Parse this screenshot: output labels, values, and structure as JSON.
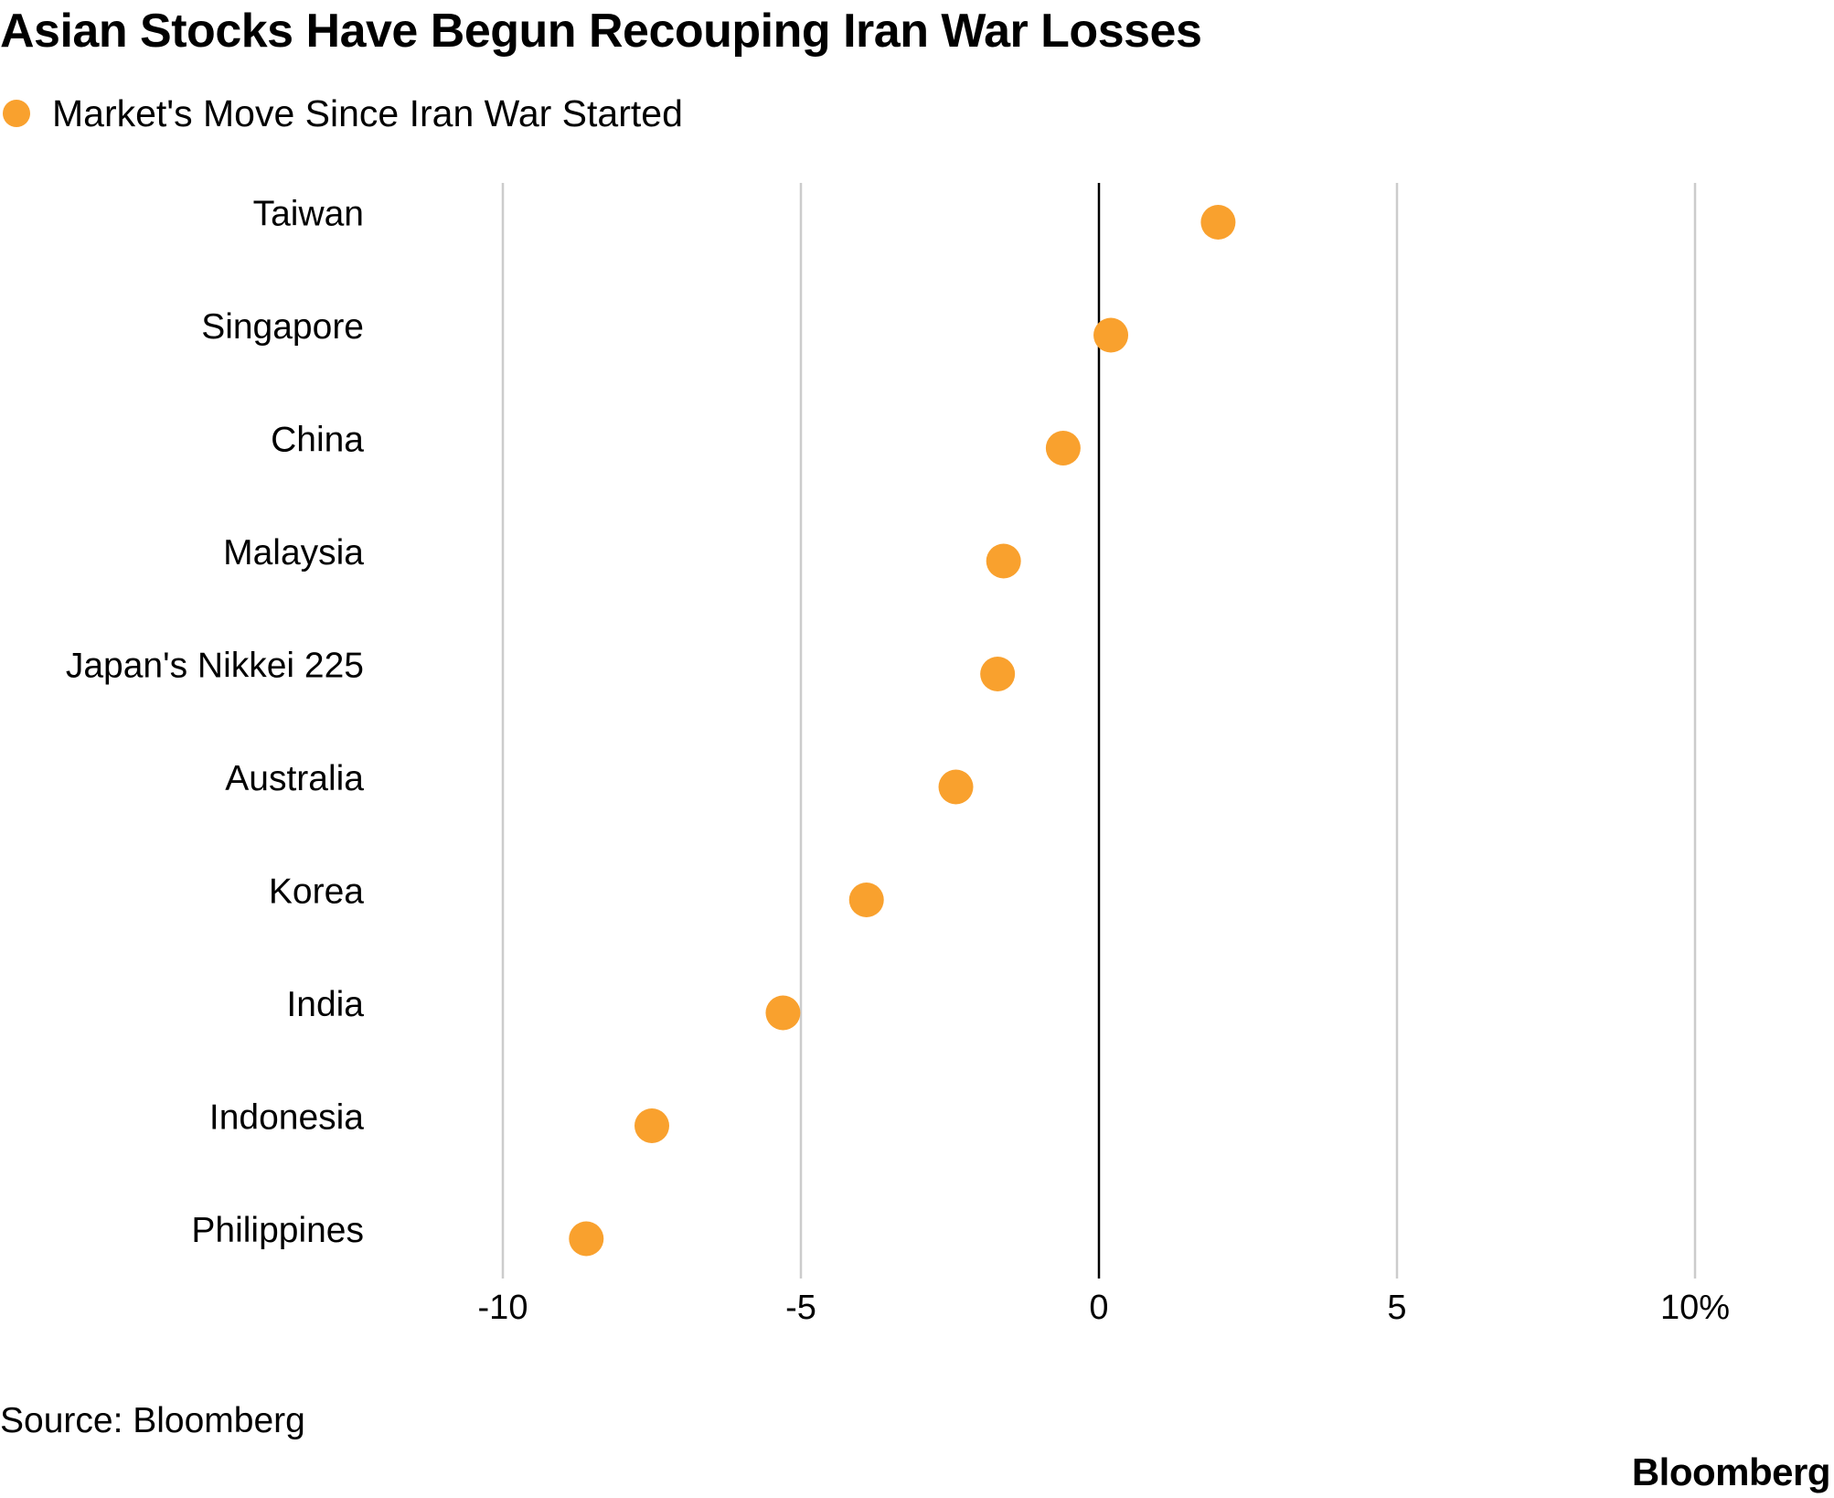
{
  "title": "Asian Stocks Have Begun Recouping Iran War Losses",
  "legend": {
    "label": "Market's Move Since Iran War Started",
    "color": "#F9A12E"
  },
  "source": "Source: Bloomberg",
  "brand": "Bloomberg",
  "colors": {
    "marker": "#F9A12E",
    "grid": "#CCCCCC",
    "zero_line": "#000000",
    "text": "#000000"
  },
  "chart_data": {
    "type": "scatter",
    "title": "Asian Stocks Have Begun Recouping Iran War Losses",
    "xlabel": "",
    "ylabel": "",
    "xlim": [
      -10,
      10
    ],
    "x_ticks": [
      -10,
      -5,
      0,
      5,
      10
    ],
    "x_tick_labels": [
      "-10",
      "-5",
      "0",
      "5",
      "10%"
    ],
    "grid": true,
    "legend_position": "top-left",
    "series": [
      {
        "name": "Market's Move Since Iran War Started",
        "categories": [
          "Taiwan",
          "Singapore",
          "China",
          "Malaysia",
          "Japan's Nikkei 225",
          "Australia",
          "Korea",
          "India",
          "Indonesia",
          "Philippines"
        ],
        "values": [
          2.0,
          0.2,
          -0.6,
          -1.6,
          -1.7,
          -2.4,
          -3.9,
          -5.3,
          -7.5,
          -8.6
        ]
      }
    ]
  }
}
